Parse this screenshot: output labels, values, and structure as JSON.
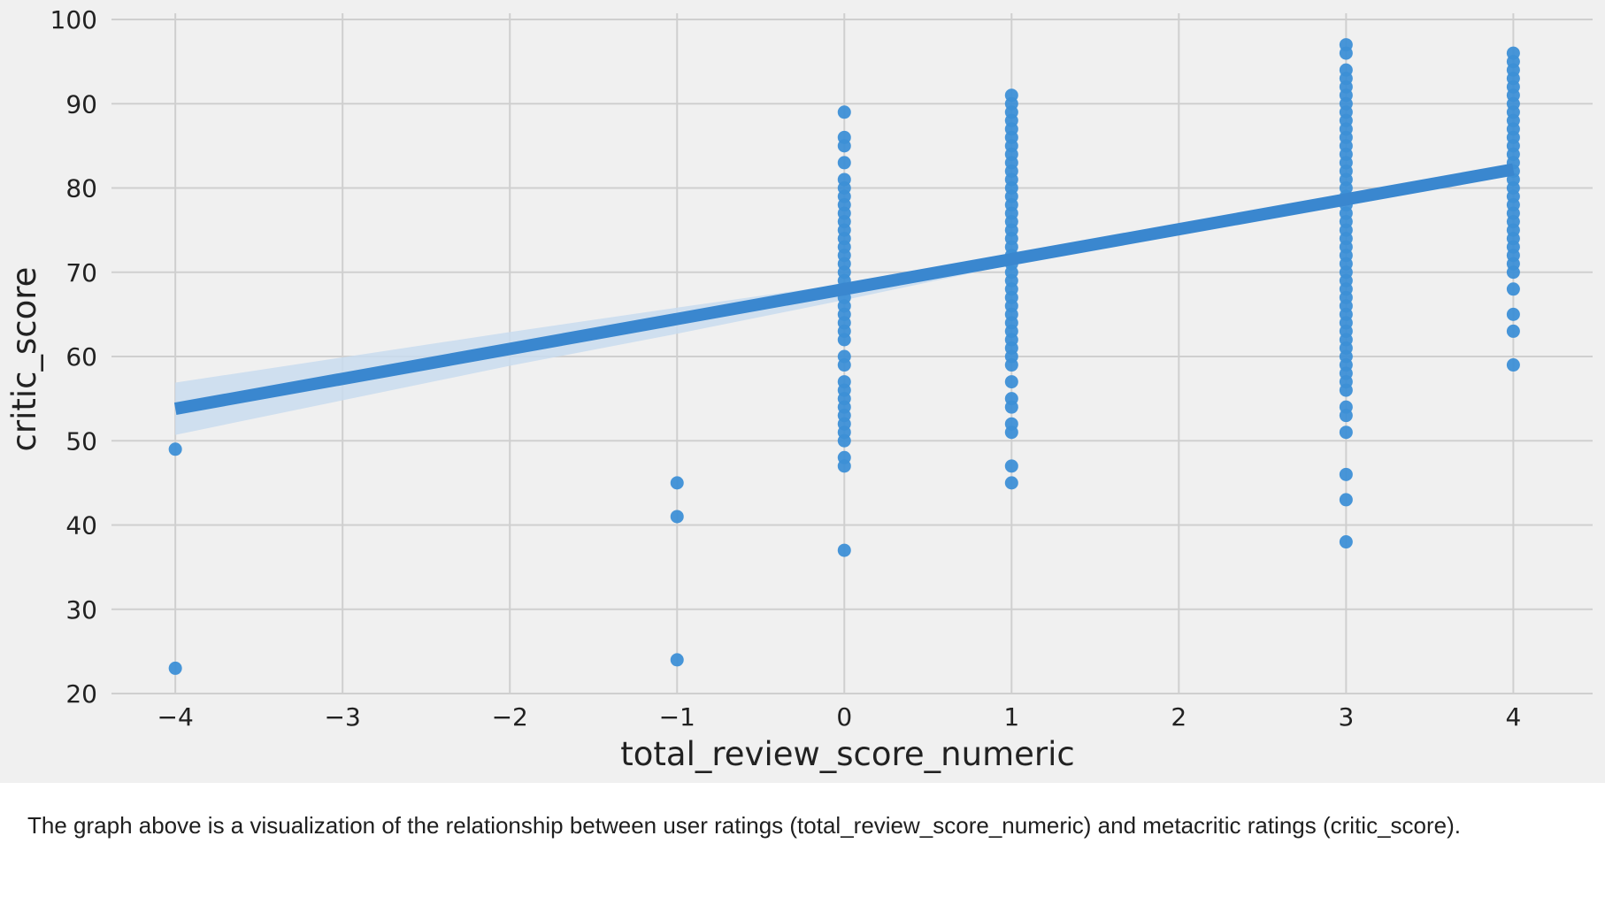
{
  "chart_data": {
    "type": "scatter",
    "xlabel": "total_review_score_numeric",
    "ylabel": "critic_score",
    "xlim": [
      -4.35,
      4.4
    ],
    "ylim": [
      20,
      100
    ],
    "xticks": [
      -4,
      -3,
      -2,
      -1,
      0,
      1,
      2,
      3,
      4
    ],
    "yticks": [
      20,
      30,
      40,
      50,
      60,
      70,
      80,
      90,
      100
    ],
    "xtick_labels": [
      "−4",
      "−3",
      "−2",
      "−1",
      "0",
      "1",
      "2",
      "3",
      "4"
    ],
    "ytick_labels": [
      "20",
      "30",
      "40",
      "50",
      "60",
      "70",
      "80",
      "90",
      "100"
    ],
    "grid": true,
    "style": "fivethirtyeight",
    "colors": {
      "points": "#3d8fd6",
      "line": "#3a87cf",
      "band": "#c9dcee",
      "grid": "#cfcfcf",
      "background": "#f0f0f0"
    },
    "points": [
      {
        "x": -4,
        "y": [
          49,
          23
        ]
      },
      {
        "x": -1,
        "y": [
          45,
          41,
          24
        ]
      },
      {
        "x": 0,
        "y": [
          89,
          86,
          85,
          83,
          81,
          80,
          79,
          78,
          77,
          76,
          75,
          74,
          73,
          72,
          71,
          70,
          69,
          68,
          67,
          66,
          65,
          64,
          63,
          62,
          60,
          59,
          57,
          56,
          55,
          54,
          53,
          52,
          51,
          50,
          48,
          47,
          37
        ]
      },
      {
        "x": 1,
        "y": [
          91,
          90,
          89,
          88,
          87,
          86,
          85,
          84,
          83,
          82,
          81,
          80,
          79,
          78,
          77,
          76,
          75,
          74,
          73,
          72,
          71,
          70,
          69,
          68,
          67,
          66,
          65,
          64,
          63,
          62,
          61,
          60,
          59,
          57,
          55,
          54,
          52,
          51,
          47,
          45
        ]
      },
      {
        "x": 3,
        "y": [
          97,
          96,
          94,
          93,
          92,
          91,
          90,
          89,
          88,
          87,
          86,
          85,
          84,
          83,
          82,
          81,
          80,
          79,
          78,
          77,
          76,
          75,
          74,
          73,
          72,
          71,
          70,
          69,
          68,
          67,
          66,
          65,
          64,
          63,
          62,
          61,
          60,
          59,
          58,
          57,
          56,
          54,
          53,
          51,
          46,
          43,
          38
        ]
      },
      {
        "x": 4,
        "y": [
          96,
          95,
          94,
          93,
          92,
          91,
          90,
          89,
          88,
          87,
          86,
          85,
          84,
          83,
          82,
          81,
          80,
          79,
          78,
          77,
          76,
          75,
          74,
          73,
          72,
          71,
          70,
          68,
          65,
          63,
          59
        ]
      }
    ],
    "regression": {
      "x": [
        -4,
        4
      ],
      "y": [
        53.8,
        82.2
      ]
    },
    "confidence_band": {
      "x": [
        -4,
        -3,
        -2,
        -1,
        0,
        1,
        2,
        3,
        4
      ],
      "upper": [
        56.9,
        59.9,
        62.9,
        65.8,
        68.6,
        71.9,
        75.3,
        78.9,
        82.8
      ],
      "lower": [
        50.7,
        54.8,
        58.9,
        62.7,
        66.7,
        70.9,
        74.5,
        77.9,
        81.6
      ]
    }
  },
  "caption": "The graph above is a visualization of the relationship between user ratings (total_review_score_numeric) and metacritic ratings (critic_score)."
}
